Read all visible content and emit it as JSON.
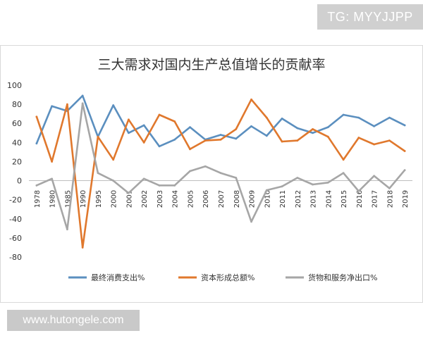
{
  "watermark": {
    "top_right": "TG: MYYJJPP",
    "bottom_left": "www.hutongele.com"
  },
  "colors": {
    "consumption": "#5b8fbf",
    "capital": "#e0782d",
    "net_export": "#a6a6a6",
    "axis": "#bfbfbf",
    "text": "#333333"
  },
  "chart_data": {
    "type": "line",
    "title": "三大需求对国内生产总值增长的贡献率",
    "ylim": [
      -80,
      100
    ],
    "yticks": [
      -80,
      -60,
      -40,
      -20,
      0,
      20,
      40,
      60,
      80,
      100
    ],
    "grid": false,
    "legend_position": "bottom",
    "x": [
      "1978",
      "1980",
      "1985",
      "1990",
      "1995",
      "2000",
      "2001",
      "2002",
      "2003",
      "2004",
      "2005",
      "2006",
      "2007",
      "2008",
      "2009",
      "2010",
      "2011",
      "2012",
      "2013",
      "2014",
      "2015",
      "2016",
      "2017",
      "2018",
      "2019"
    ],
    "series": [
      {
        "name": "最终消费支出%",
        "color": "#5b8fbf",
        "values": [
          39,
          78,
          73,
          89,
          46,
          79,
          50,
          58,
          36,
          43,
          56,
          43,
          48,
          44,
          57,
          47,
          65,
          55,
          50,
          56,
          69,
          66,
          57,
          66,
          58
        ]
      },
      {
        "name": "资本形成总额%",
        "color": "#e0782d",
        "values": [
          67,
          20,
          80,
          -70,
          46,
          22,
          64,
          40,
          69,
          62,
          33,
          42,
          43,
          54,
          85,
          66,
          41,
          42,
          54,
          46,
          22,
          45,
          38,
          42,
          31
        ]
      },
      {
        "name": "货物和服务净出口%",
        "color": "#a6a6a6",
        "values": [
          -5,
          2,
          -51,
          81,
          8,
          0,
          -13,
          2,
          -5,
          -5,
          10,
          15,
          8,
          3,
          -43,
          -10,
          -6,
          3,
          -4,
          -2,
          8,
          -11,
          5,
          -8,
          11
        ]
      }
    ]
  }
}
